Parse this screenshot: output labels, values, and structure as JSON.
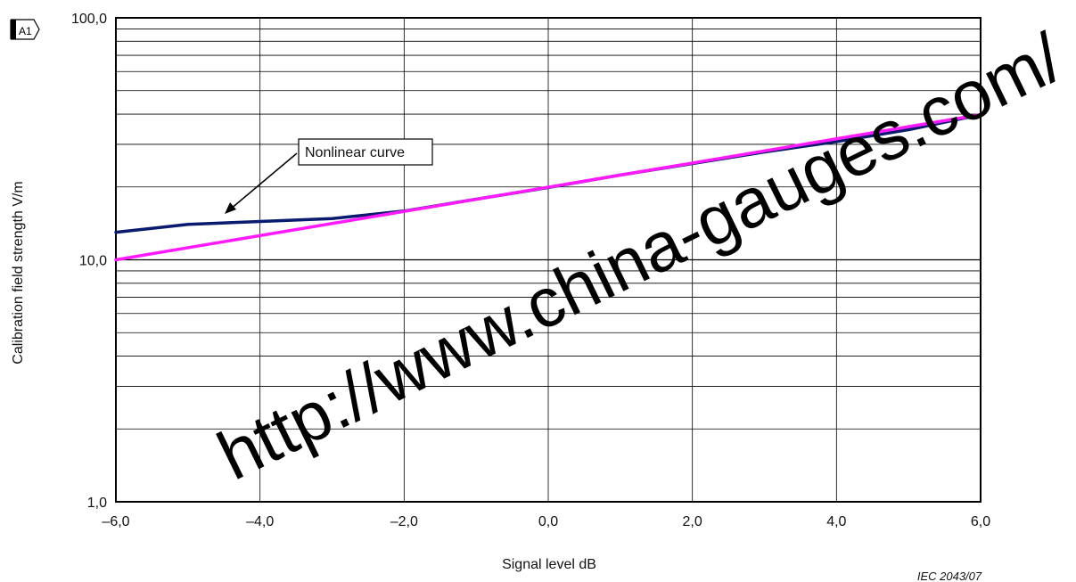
{
  "chart_data": {
    "type": "line",
    "xlabel": "Signal level   dB",
    "ylabel": "Calibration field strength    V/m",
    "x_scale": "linear",
    "y_scale": "log",
    "xlim": [
      -6,
      6
    ],
    "ylim": [
      1,
      100
    ],
    "x_ticks": [
      -6,
      -4,
      -2,
      0,
      2,
      4,
      6
    ],
    "x_tick_labels": [
      "–6,0",
      "–4,0",
      "–2,0",
      "0,0",
      "2,0",
      "4,0",
      "6,0"
    ],
    "y_ticks": [
      1,
      10,
      100
    ],
    "y_tick_labels": [
      "1,0",
      "10,0",
      "100,0"
    ],
    "grid": true,
    "series": [
      {
        "color": "#0a1a6e",
        "x": [
          -6,
          -5,
          -4,
          -3,
          -2,
          -1,
          0,
          1,
          2,
          3,
          4,
          5,
          6
        ],
        "y": [
          13.0,
          14.0,
          14.4,
          14.8,
          15.9,
          17.8,
          19.9,
          22.4,
          25.0,
          27.9,
          30.8,
          34.5,
          39.8
        ]
      },
      {
        "color": "#ff1aff",
        "x": [
          -6,
          6
        ],
        "y": [
          10.0,
          39.8
        ]
      }
    ],
    "annotations": [
      {
        "text": "Nonlinear curve"
      }
    ],
    "corner_mark": "A1"
  },
  "watermark": "http://www.china-gauges.com/",
  "source_label": "IEC   2043/07"
}
